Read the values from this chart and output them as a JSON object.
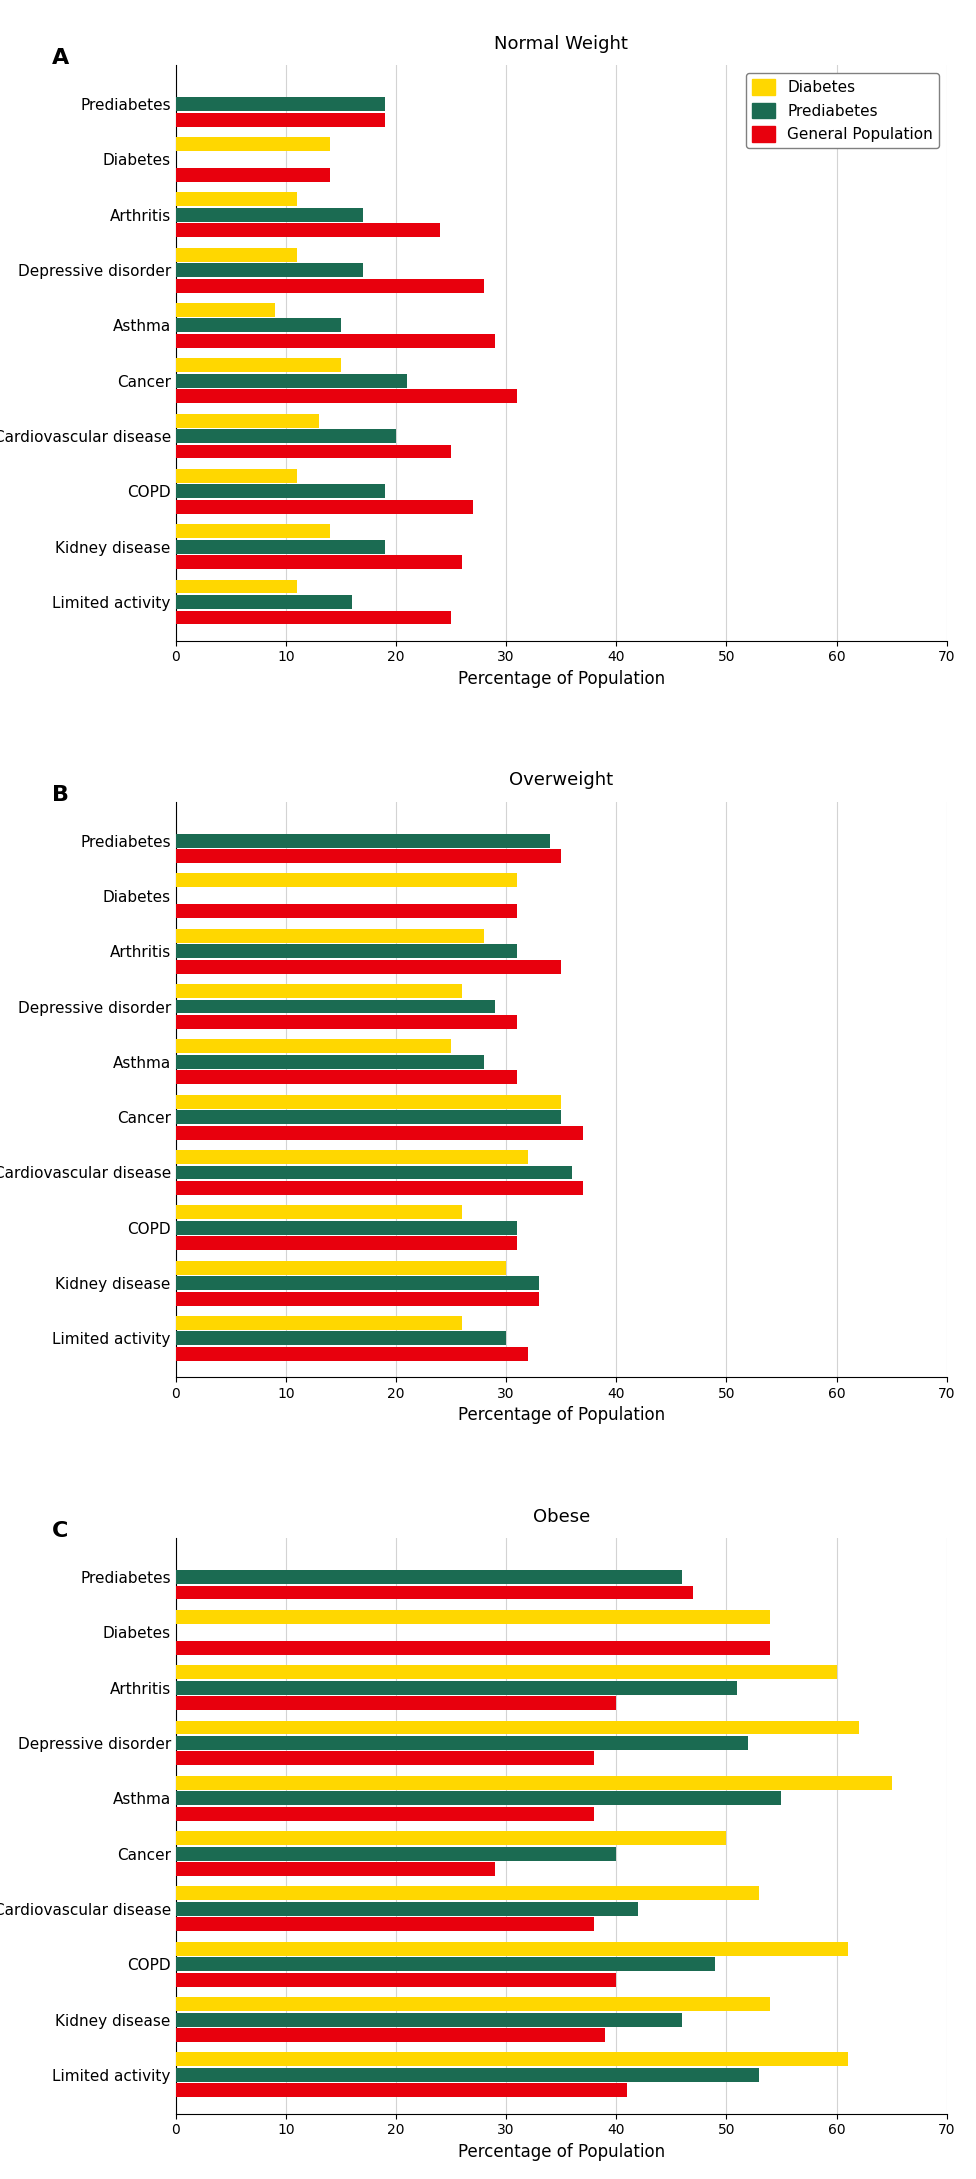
{
  "panels": [
    {
      "label": "A",
      "title": "Normal Weight",
      "categories": [
        "Prediabetes",
        "Diabetes",
        "Arthritis",
        "Depressive disorder",
        "Asthma",
        "Cancer",
        "Cardiovascular disease",
        "COPD",
        "Kidney disease",
        "Limited activity"
      ],
      "diabetes": [
        null,
        14,
        11,
        11,
        9,
        15,
        13,
        11,
        14,
        11
      ],
      "prediabetes": [
        19,
        null,
        17,
        17,
        15,
        21,
        20,
        19,
        19,
        16
      ],
      "general_pop": [
        19,
        14,
        24,
        28,
        29,
        31,
        25,
        27,
        26,
        25
      ]
    },
    {
      "label": "B",
      "title": "Overweight",
      "categories": [
        "Prediabetes",
        "Diabetes",
        "Arthritis",
        "Depressive disorder",
        "Asthma",
        "Cancer",
        "Cardiovascular disease",
        "COPD",
        "Kidney disease",
        "Limited activity"
      ],
      "diabetes": [
        null,
        31,
        28,
        26,
        25,
        35,
        32,
        26,
        30,
        26
      ],
      "prediabetes": [
        34,
        null,
        31,
        29,
        28,
        35,
        36,
        31,
        33,
        30
      ],
      "general_pop": [
        35,
        31,
        35,
        31,
        31,
        37,
        37,
        31,
        33,
        32
      ]
    },
    {
      "label": "C",
      "title": "Obese",
      "categories": [
        "Prediabetes",
        "Diabetes",
        "Arthritis",
        "Depressive disorder",
        "Asthma",
        "Cancer",
        "Cardiovascular disease",
        "COPD",
        "Kidney disease",
        "Limited activity"
      ],
      "diabetes": [
        null,
        54,
        60,
        62,
        65,
        50,
        53,
        61,
        54,
        61
      ],
      "prediabetes": [
        46,
        null,
        51,
        52,
        55,
        40,
        42,
        49,
        46,
        53
      ],
      "general_pop": [
        47,
        54,
        40,
        38,
        38,
        29,
        38,
        40,
        39,
        41
      ]
    }
  ],
  "colors": {
    "diabetes": "#FFD700",
    "prediabetes": "#1B6B52",
    "general_pop": "#E8000D"
  },
  "xlim": [
    0,
    70
  ],
  "xticks": [
    0,
    10,
    20,
    30,
    40,
    50,
    60,
    70
  ],
  "xlabel": "Percentage of Population",
  "bar_height": 0.28,
  "legend_labels": [
    "Diabetes",
    "Prediabetes",
    "General Population"
  ]
}
